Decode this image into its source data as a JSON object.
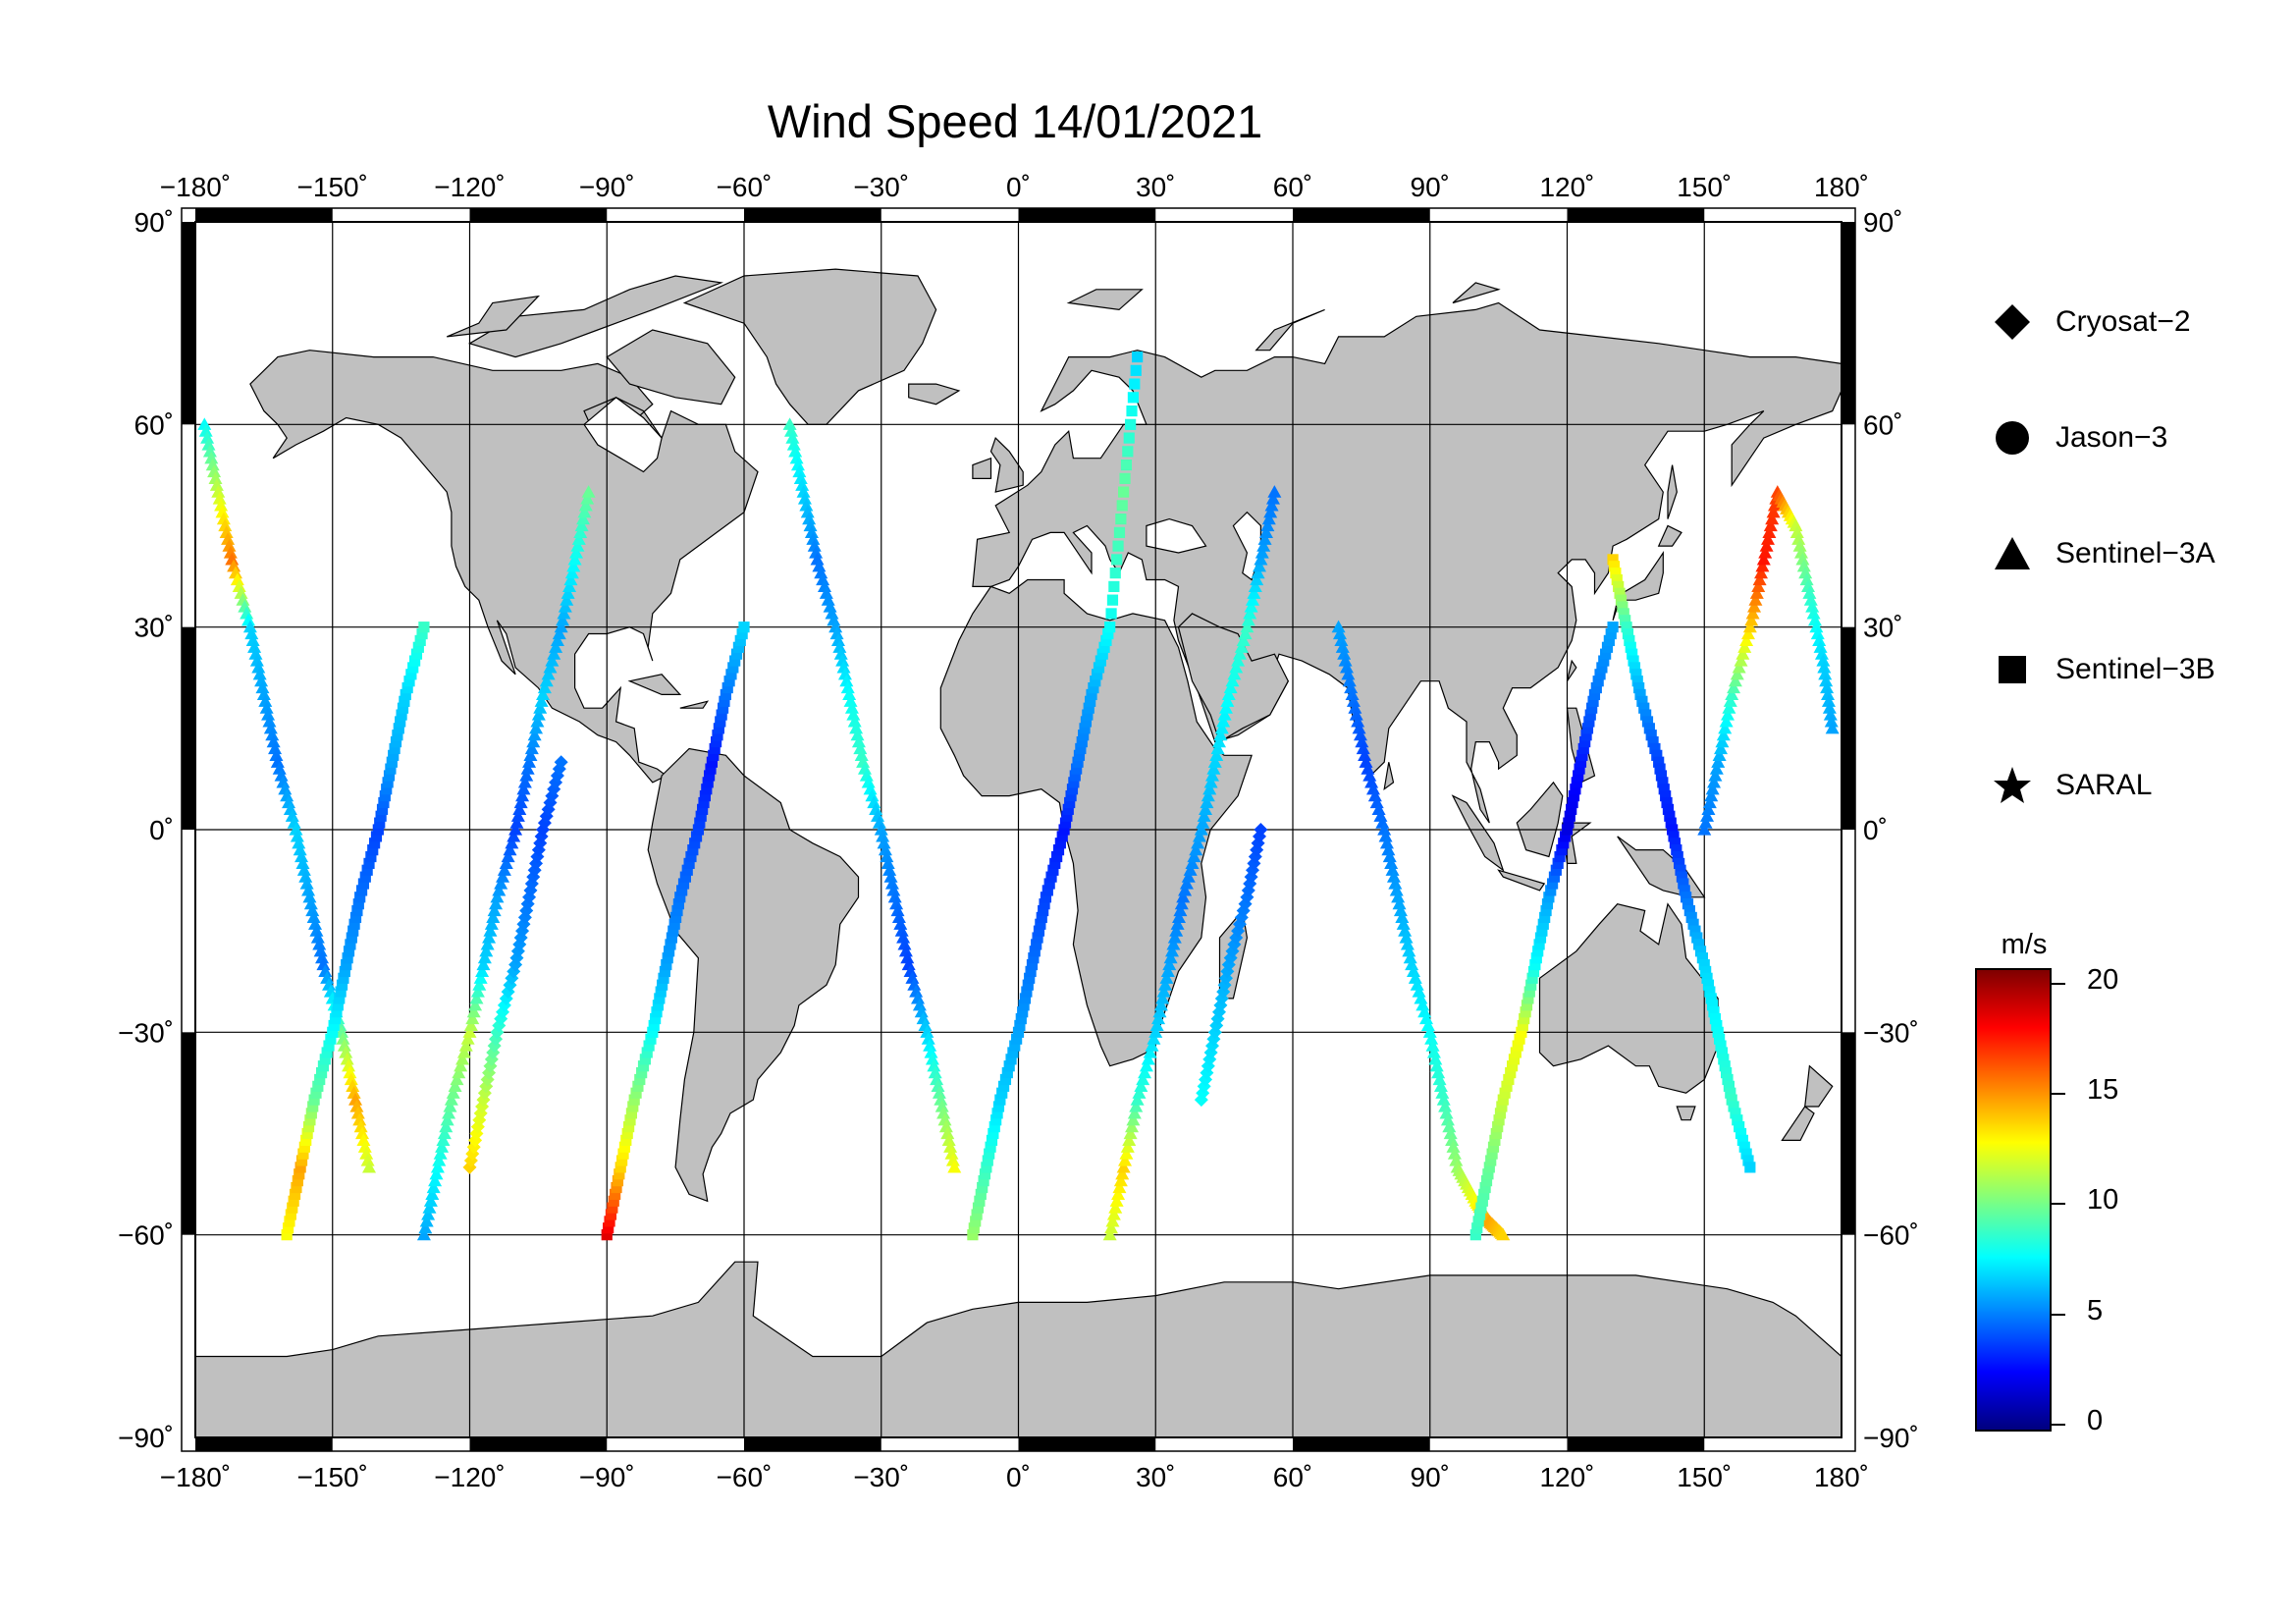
{
  "title": "Wind Speed 14/01/2021",
  "map": {
    "projection": "equirectangular",
    "lon_range": [
      -180,
      180
    ],
    "lat_range": [
      -90,
      90
    ],
    "gridlines": true,
    "land_color": "#c0c0c0",
    "ocean_color": "#ffffff",
    "lon_ticks": [
      "−180˚",
      "−150˚",
      "−120˚",
      "−90˚",
      "−60˚",
      "−30˚",
      "0˚",
      "30˚",
      "60˚",
      "90˚",
      "120˚",
      "150˚",
      "180˚"
    ],
    "lat_ticks_left": [
      "90˚",
      "60˚",
      "30˚",
      "0˚",
      "−30˚",
      "−60˚",
      "−90˚"
    ],
    "lat_ticks_right": [
      "90˚",
      "60˚",
      "30˚",
      "0˚",
      "−30˚",
      "−60˚",
      "−90˚"
    ]
  },
  "legend": {
    "placement": "right",
    "items": [
      {
        "label": "Cryosat−2",
        "symbol": "diamond"
      },
      {
        "label": "Jason−3",
        "symbol": "circle"
      },
      {
        "label": "Sentinel−3A",
        "symbol": "triangle"
      },
      {
        "label": "Sentinel−3B",
        "symbol": "square"
      },
      {
        "label": "SARAL",
        "symbol": "star"
      }
    ]
  },
  "colorbar": {
    "unit": "m/s",
    "range": [
      0,
      21
    ],
    "ticks": [
      "20",
      "15",
      "10",
      "5",
      "0"
    ],
    "colormap": "jet",
    "colors": [
      "#00007f",
      "#0000ff",
      "#007fff",
      "#00ffff",
      "#7fff7f",
      "#ffff00",
      "#ff7f00",
      "#ff0000",
      "#7f0000"
    ]
  },
  "chart_data": {
    "type": "scatter",
    "title": "Wind Speed 14/01/2021",
    "xlabel": "",
    "ylabel": "",
    "xlim": [
      -180,
      180
    ],
    "ylim": [
      -90,
      90
    ],
    "value_unit": "m/s",
    "value_range": [
      0,
      21
    ],
    "series": [
      {
        "name": "Sentinel−3A",
        "marker": "triangle",
        "tracks": [
          {
            "lon": [
              -178,
              -175,
              -172,
              -168,
              -165,
              -162,
              -158,
              -155,
              -152,
              -148,
              -145,
              -142
            ],
            "lat": [
              60,
              50,
              40,
              30,
              20,
              10,
              0,
              -10,
              -20,
              -30,
              -40,
              -50
            ],
            "speed": [
              8,
              12,
              16,
              7,
              6,
              5,
              7,
              6,
              5,
              10,
              15,
              12
            ]
          },
          {
            "lon": [
              -130,
              -127,
              -124,
              -120,
              -117,
              -114,
              -110,
              -107,
              -104,
              -100,
              -97,
              -94
            ],
            "lat": [
              -60,
              -50,
              -40,
              -30,
              -20,
              -10,
              0,
              10,
              20,
              30,
              40,
              50
            ],
            "speed": [
              6,
              8,
              10,
              12,
              7,
              6,
              4,
              5,
              7,
              6,
              8,
              10
            ]
          },
          {
            "lon": [
              -50,
              -47,
              -44,
              -40,
              -37,
              -34,
              -30,
              -27,
              -24,
              -20,
              -17,
              -14
            ],
            "lat": [
              60,
              50,
              40,
              30,
              20,
              10,
              0,
              -10,
              -20,
              -30,
              -40,
              -50
            ],
            "speed": [
              9,
              7,
              5,
              6,
              8,
              9,
              6,
              5,
              4,
              7,
              10,
              13
            ]
          },
          {
            "lon": [
              20,
              23,
              26,
              30,
              33,
              36,
              40,
              43,
              46,
              50,
              53,
              56
            ],
            "lat": [
              -60,
              -50,
              -40,
              -30,
              -20,
              -10,
              0,
              10,
              20,
              30,
              40,
              50
            ],
            "speed": [
              12,
              14,
              9,
              7,
              6,
              5,
              6,
              7,
              8,
              9,
              6,
              5
            ]
          },
          {
            "lon": [
              70,
              73,
              76,
              80,
              83,
              86,
              90,
              93,
              96,
              100,
              103,
              106
            ],
            "lat": [
              30,
              20,
              10,
              0,
              -10,
              -20,
              -30,
              -40,
              -50,
              -55,
              -58,
              -60
            ],
            "speed": [
              6,
              5,
              4,
              5,
              6,
              7,
              8,
              9,
              11,
              13,
              15,
              14
            ]
          },
          {
            "lon": [
              150,
              153,
              156,
              160,
              163,
              166,
              170,
              173,
              176,
              178
            ],
            "lat": [
              0,
              10,
              20,
              30,
              40,
              50,
              45,
              35,
              25,
              15
            ],
            "speed": [
              5,
              6,
              9,
              14,
              18,
              17,
              12,
              9,
              7,
              6
            ]
          }
        ]
      },
      {
        "name": "Sentinel−3B",
        "marker": "square",
        "tracks": [
          {
            "lon": [
              -160,
              -157,
              -154,
              -150,
              -147,
              -144,
              -140,
              -137,
              -134,
              -130
            ],
            "lat": [
              -60,
              -50,
              -40,
              -30,
              -20,
              -10,
              0,
              10,
              20,
              30
            ],
            "speed": [
              13,
              15,
              10,
              8,
              6,
              5,
              4,
              6,
              7,
              9
            ]
          },
          {
            "lon": [
              -90,
              -87,
              -84,
              -80,
              -77,
              -74,
              -70,
              -67,
              -64,
              -60
            ],
            "lat": [
              -60,
              -50,
              -40,
              -30,
              -20,
              -10,
              0,
              10,
              20,
              30
            ],
            "speed": [
              19,
              14,
              11,
              8,
              6,
              5,
              4,
              3,
              5,
              7
            ]
          },
          {
            "lon": [
              -10,
              -7,
              -4,
              0,
              3,
              6,
              10,
              13,
              16,
              20,
              23,
              26
            ],
            "lat": [
              -60,
              -50,
              -40,
              -30,
              -20,
              -10,
              0,
              10,
              20,
              30,
              50,
              70
            ],
            "speed": [
              11,
              9,
              7,
              6,
              5,
              4,
              3,
              5,
              6,
              8,
              10,
              7
            ]
          },
          {
            "lon": [
              100,
              103,
              106,
              110,
              113,
              116,
              120,
              123,
              126,
              130
            ],
            "lat": [
              -60,
              -50,
              -40,
              -30,
              -20,
              -10,
              0,
              10,
              20,
              30
            ],
            "speed": [
              9,
              10,
              12,
              13,
              8,
              6,
              2,
              3,
              5,
              6
            ]
          },
          {
            "lon": [
              130,
              133,
              136,
              140,
              143,
              146,
              150,
              153,
              156,
              160
            ],
            "lat": [
              40,
              30,
              20,
              10,
              0,
              -10,
              -20,
              -30,
              -40,
              -50
            ],
            "speed": [
              14,
              9,
              6,
              4,
              3,
              5,
              7,
              8,
              9,
              7
            ]
          }
        ]
      },
      {
        "name": "Cryosat−2",
        "marker": "diamond",
        "tracks": [
          {
            "lon": [
              -120,
              -117,
              -114,
              -110,
              -107,
              -104,
              -100
            ],
            "lat": [
              -50,
              -40,
              -30,
              -20,
              -10,
              0,
              10
            ],
            "speed": [
              14,
              12,
              9,
              6,
              5,
              4,
              5
            ]
          },
          {
            "lon": [
              40,
              43,
              46,
              50,
              53
            ],
            "lat": [
              -40,
              -30,
              -20,
              -10,
              0
            ],
            "speed": [
              8,
              7,
              6,
              5,
              4
            ]
          }
        ]
      }
    ]
  }
}
